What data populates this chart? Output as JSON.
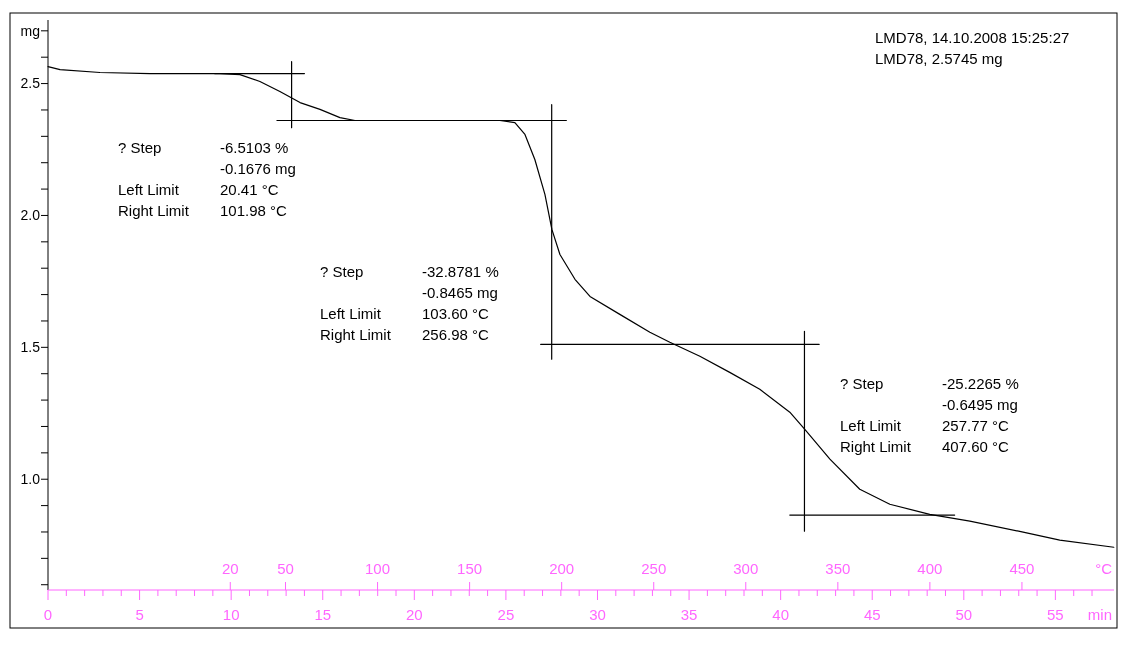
{
  "chart_data": {
    "type": "line",
    "ylabel": "mg",
    "xlabel": "min",
    "x2label": "°C",
    "xlim": [
      0,
      58.2
    ],
    "xticks": [
      0,
      {
        "value": 1,
        "label": null
      },
      {
        "value": 2,
        "label": null
      },
      {
        "value": 3,
        "label": null
      },
      {
        "value": 4,
        "label": null
      },
      5,
      {
        "value": 6,
        "label": null
      },
      {
        "value": 7,
        "label": null
      },
      {
        "value": 8,
        "label": null
      },
      {
        "value": 9,
        "label": null
      },
      10,
      {
        "value": 11,
        "label": null
      },
      {
        "value": 12,
        "label": null
      },
      {
        "value": 13,
        "label": null
      },
      {
        "value": 14,
        "label": null
      },
      15,
      {
        "value": 16,
        "label": null
      },
      {
        "value": 17,
        "label": null
      },
      {
        "value": 18,
        "label": null
      },
      {
        "value": 19,
        "label": null
      },
      20,
      {
        "value": 21,
        "label": null
      },
      {
        "value": 22,
        "label": null
      },
      {
        "value": 23,
        "label": null
      },
      {
        "value": 24,
        "label": null
      },
      25,
      {
        "value": 26,
        "label": null
      },
      {
        "value": 27,
        "label": null
      },
      {
        "value": 28,
        "label": null
      },
      {
        "value": 29,
        "label": null
      },
      30,
      {
        "value": 31,
        "label": null
      },
      {
        "value": 32,
        "label": null
      },
      {
        "value": 33,
        "label": null
      },
      {
        "value": 34,
        "label": null
      },
      35,
      {
        "value": 36,
        "label": null
      },
      {
        "value": 37,
        "label": null
      },
      {
        "value": 38,
        "label": null
      },
      {
        "value": 39,
        "label": null
      },
      40,
      {
        "value": 41,
        "label": null
      },
      {
        "value": 42,
        "label": null
      },
      {
        "value": 43,
        "label": null
      },
      {
        "value": 44,
        "label": null
      },
      45,
      {
        "value": 46,
        "label": null
      },
      {
        "value": 47,
        "label": null
      },
      {
        "value": 48,
        "label": null
      },
      {
        "value": 49,
        "label": null
      },
      50,
      {
        "value": 51,
        "label": null
      },
      {
        "value": 52,
        "label": null
      },
      {
        "value": 53,
        "label": null
      },
      {
        "value": 54,
        "label": null
      },
      55,
      {
        "value": 56,
        "label": null
      },
      {
        "value": 57,
        "label": null
      }
    ],
    "x2lim": [
      -79,
      500
    ],
    "x2ticks": [
      20,
      50,
      100,
      150,
      200,
      250,
      300,
      350,
      400,
      450
    ],
    "ylim": [
      0.58,
      2.76
    ],
    "yticks": [
      {
        "value": 0.6,
        "label": null
      },
      {
        "value": 0.7,
        "label": null
      },
      {
        "value": 0.8,
        "label": null
      },
      {
        "value": 0.9,
        "label": null
      },
      {
        "value": 1.0,
        "label": "1.0"
      },
      {
        "value": 1.1,
        "label": null
      },
      {
        "value": 1.2,
        "label": null
      },
      {
        "value": 1.3,
        "label": null
      },
      {
        "value": 1.4,
        "label": null
      },
      {
        "value": 1.5,
        "label": "1.5"
      },
      {
        "value": 1.6,
        "label": null
      },
      {
        "value": 1.7,
        "label": null
      },
      {
        "value": 1.8,
        "label": null
      },
      {
        "value": 1.9,
        "label": null
      },
      {
        "value": 2.0,
        "label": "2.0"
      },
      {
        "value": 2.1,
        "label": null
      },
      {
        "value": 2.2,
        "label": null
      },
      {
        "value": 2.3,
        "label": null
      },
      {
        "value": 2.4,
        "label": null
      },
      {
        "value": 2.5,
        "label": "2.5"
      },
      {
        "value": 2.6,
        "label": null
      },
      {
        "value": 2.7,
        "label": null
      }
    ],
    "grid": false,
    "line_style": "solid",
    "series": [
      {
        "color": "#000000",
        "x": [
          0,
          0.66,
          2.84,
          5.57,
          9.39,
          10.48,
          11.57,
          12.66,
          13.76,
          14.85,
          15.94,
          16.76,
          18.12,
          21.94,
          24.67,
          25.49,
          26.04,
          26.58,
          27.13,
          27.51,
          27.95,
          28.77,
          29.59,
          31.22,
          32.86,
          33.95,
          35.59,
          37.22,
          38.86,
          40.5,
          41.32,
          42.69,
          44.32,
          45.96,
          48.14,
          50.33,
          52.99,
          55.24,
          58.19
        ],
        "values": [
          2.564,
          2.553,
          2.542,
          2.538,
          2.538,
          2.534,
          2.508,
          2.47,
          2.428,
          2.402,
          2.371,
          2.36,
          2.36,
          2.36,
          2.36,
          2.352,
          2.307,
          2.212,
          2.08,
          1.947,
          1.852,
          1.758,
          1.693,
          1.625,
          1.557,
          1.519,
          1.466,
          1.405,
          1.341,
          1.254,
          1.189,
          1.076,
          0.962,
          0.905,
          0.867,
          0.841,
          0.803,
          0.769,
          0.742
        ]
      },
      {
        "color": "#000000",
        "x": [
          9.1,
          14.0,
          null,
          13.3,
          13.3,
          null,
          12.5,
          28.3
        ],
        "values": [
          2.538,
          2.538,
          null,
          2.583,
          2.333,
          null,
          2.36,
          2.36
        ]
      },
      {
        "color": "#000000",
        "x": [
          27.5,
          27.5,
          null,
          26.9,
          42.1
        ],
        "values": [
          2.42,
          1.455,
          null,
          1.511,
          1.511
        ]
      },
      {
        "color": "#000000",
        "x": [
          41.3,
          41.3,
          null,
          40.5,
          49.5
        ],
        "values": [
          1.561,
          0.803,
          null,
          0.864,
          0.864
        ]
      }
    ],
    "annotations": [
      "LMD78, 14.10.2008 15:25:27",
      "LMD78, 2.5745 mg",
      "? Step",
      "-6.5103 %",
      "-0.1676 mg",
      "Left Limit",
      "20.41 °C",
      "Right Limit",
      "101.98 °C",
      "? Step",
      "-32.8781 %",
      "-0.8465 mg",
      "Left Limit",
      "103.60 °C",
      "Right Limit",
      "256.98 °C",
      "? Step",
      "-25.2265 %",
      "-0.6495 mg",
      "Left Limit",
      "257.77 °C",
      "Right Limit",
      "407.60 °C"
    ]
  }
}
